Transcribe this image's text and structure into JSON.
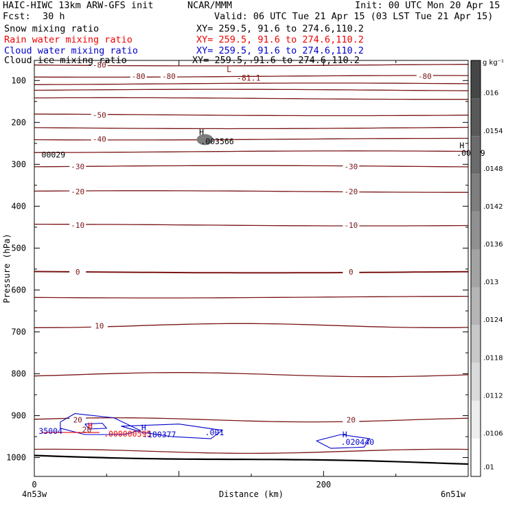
{
  "header": {
    "model": "HAIC-HIWC 13km ARW-GFS init",
    "center": "NCAR/MMM",
    "init": "Init: 00 UTC Mon 20 Apr 15",
    "fcst_label": "Fcst:",
    "fcst_value": "30 h",
    "valid": "Valid: 06 UTC Tue 21 Apr 15 (03 LST Tue 21 Apr 15)"
  },
  "fields": [
    {
      "label": "Snow mixing ratio",
      "xy": "XY= 259.5, 91.6 to 274.6,110.2",
      "color": "#000000"
    },
    {
      "label": "Rain water mixing ratio",
      "xy": "XY= 259.5, 91.6 to 274.6,110.2",
      "color": "#ee0000"
    },
    {
      "label": "Cloud water mixing ratio",
      "xy": "XY= 259.5, 91.6 to 274.6,110.2",
      "color": "#0000cc"
    },
    {
      "label": "Cloud ice mixing ratio",
      "xy": "XY= 259.5, 91.6 to 274.6,110.2",
      "color": "#000000"
    }
  ],
  "chart_data": {
    "type": "contour",
    "ylabel": "Pressure (hPa)",
    "xlabel": "Distance (km)",
    "x_ticks": [
      0,
      200
    ],
    "x_end_labels": [
      "4n53w",
      "6n51w"
    ],
    "y_ticks": [
      100,
      200,
      300,
      400,
      500,
      600,
      700,
      800,
      900,
      1000
    ],
    "xlim": [
      0,
      300
    ],
    "ylim": [
      1045,
      52
    ],
    "temperature_contours": [
      {
        "level": -80,
        "pressure": 63,
        "labels": [
          "-80"
        ]
      },
      {
        "level": -80,
        "pressure": 90,
        "labels": [
          "-80",
          "-80",
          "-80"
        ]
      },
      {
        "level": -70,
        "pressure": 108
      },
      {
        "level": -60,
        "pressure": 123
      },
      {
        "level": -60,
        "pressure": 143
      },
      {
        "level": -50,
        "pressure": 182,
        "labels": [
          "-50"
        ]
      },
      {
        "level": -45,
        "pressure": 213
      },
      {
        "level": -40,
        "pressure": 240,
        "labels": [
          "-40"
        ]
      },
      {
        "level": -35,
        "pressure": 270
      },
      {
        "level": -30,
        "pressure": 305,
        "labels": [
          "-30",
          "-30"
        ]
      },
      {
        "level": -20,
        "pressure": 365,
        "labels": [
          "-20",
          "-20"
        ]
      },
      {
        "level": -10,
        "pressure": 445,
        "labels": [
          "-10",
          "-10"
        ]
      },
      {
        "level": 0,
        "pressure": 557,
        "labels": [
          "0",
          "0"
        ]
      },
      {
        "level": 5,
        "pressure": 617
      },
      {
        "level": 10,
        "pressure": 685,
        "labels": [
          "10"
        ]
      },
      {
        "level": 15,
        "pressure": 802
      },
      {
        "level": 20,
        "pressure": 910,
        "labels": [
          "20",
          "20"
        ]
      },
      {
        "level": 25,
        "pressure": 985
      }
    ],
    "annotations": [
      {
        "text": "L",
        "color": "#8b1a1a",
        "x": 133,
        "p": 80
      },
      {
        "text": "-81.1",
        "color": "#8b1a1a",
        "x": 140,
        "p": 100
      },
      {
        "text": "H",
        "color": "#000000",
        "x": 114,
        "p": 230
      },
      {
        "text": ".003566",
        "color": "#000000",
        "x": 115,
        "p": 252
      },
      {
        "text": "H",
        "color": "#000000",
        "x": 294,
        "p": 262
      },
      {
        "text": ".00069",
        "color": "#000000",
        "x": 292,
        "p": 280
      },
      {
        "text": "00029",
        "color": "#000000",
        "x": 5,
        "p": 284
      },
      {
        "text": "H",
        "color": "#ee0000",
        "x": 37,
        "p": 930
      },
      {
        "text": ".000000595",
        "color": "#ee0000",
        "x": 48,
        "p": 950
      },
      {
        "text": "35004",
        "color": "#0000cc",
        "x": 3,
        "p": 943
      },
      {
        "text": "20",
        "color": "#8b1a1a",
        "x": 33,
        "p": 940
      },
      {
        "text": "H",
        "color": "#0000cc",
        "x": 74,
        "p": 935
      },
      {
        "text": ".180377",
        "color": "#0000cc",
        "x": 75,
        "p": 952
      },
      {
        "text": ".001",
        "color": "#0000cc",
        "x": 118,
        "p": 947
      },
      {
        "text": "H",
        "color": "#0000cc",
        "x": 213,
        "p": 952
      },
      {
        "text": ".020440",
        "color": "#0000cc",
        "x": 212,
        "p": 970
      }
    ],
    "colorbar": {
      "unit": "g kg⁻¹",
      "labels": [
        ".016",
        ".0154",
        ".0148",
        ".0142",
        ".0136",
        ".013",
        ".0124",
        ".0118",
        ".0112",
        ".0106",
        ".01"
      ]
    }
  }
}
